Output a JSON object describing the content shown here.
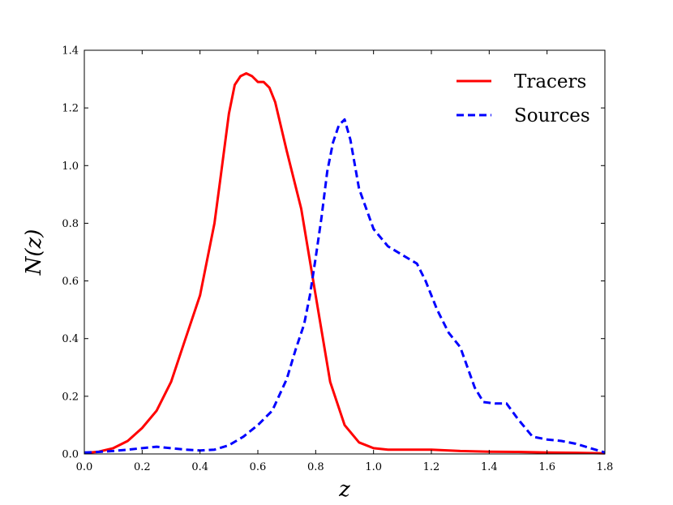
{
  "chart_data": {
    "type": "line",
    "title": "",
    "xlabel": "z",
    "ylabel": "N(z)",
    "xlim": [
      0.0,
      1.8
    ],
    "ylim": [
      0.0,
      1.4
    ],
    "xticks": [
      "0.0",
      "0.2",
      "0.4",
      "0.6",
      "0.8",
      "1.0",
      "1.2",
      "1.4",
      "1.6",
      "1.8"
    ],
    "yticks": [
      "0.0",
      "0.2",
      "0.4",
      "0.6",
      "0.8",
      "1.0",
      "1.2",
      "1.4"
    ],
    "grid": false,
    "legend_position": "top-right",
    "series": [
      {
        "name": "Tracers",
        "color": "#ff0000",
        "linestyle": "solid",
        "x": [
          0.0,
          0.05,
          0.1,
          0.15,
          0.2,
          0.25,
          0.3,
          0.35,
          0.4,
          0.45,
          0.47,
          0.5,
          0.52,
          0.54,
          0.56,
          0.58,
          0.6,
          0.62,
          0.64,
          0.66,
          0.7,
          0.75,
          0.8,
          0.85,
          0.9,
          0.95,
          1.0,
          1.05,
          1.1,
          1.15,
          1.2,
          1.3,
          1.4,
          1.5,
          1.6,
          1.7,
          1.8
        ],
        "y": [
          0.003,
          0.008,
          0.02,
          0.045,
          0.09,
          0.15,
          0.25,
          0.4,
          0.55,
          0.8,
          0.95,
          1.18,
          1.28,
          1.31,
          1.32,
          1.31,
          1.29,
          1.29,
          1.27,
          1.22,
          1.05,
          0.85,
          0.55,
          0.25,
          0.1,
          0.04,
          0.02,
          0.015,
          0.015,
          0.015,
          0.015,
          0.01,
          0.008,
          0.007,
          0.005,
          0.004,
          0.002
        ]
      },
      {
        "name": "Sources",
        "color": "#0000ff",
        "linestyle": "dashed",
        "x": [
          0.0,
          0.05,
          0.1,
          0.15,
          0.2,
          0.25,
          0.3,
          0.35,
          0.4,
          0.45,
          0.5,
          0.55,
          0.6,
          0.65,
          0.7,
          0.73,
          0.76,
          0.78,
          0.8,
          0.82,
          0.84,
          0.86,
          0.88,
          0.9,
          0.92,
          0.95,
          1.0,
          1.05,
          1.1,
          1.15,
          1.18,
          1.22,
          1.26,
          1.3,
          1.35,
          1.38,
          1.42,
          1.46,
          1.5,
          1.55,
          1.6,
          1.65,
          1.7,
          1.75,
          1.8
        ],
        "y": [
          0.005,
          0.007,
          0.01,
          0.015,
          0.02,
          0.025,
          0.02,
          0.015,
          0.012,
          0.015,
          0.03,
          0.06,
          0.1,
          0.15,
          0.26,
          0.36,
          0.45,
          0.55,
          0.68,
          0.82,
          0.98,
          1.08,
          1.14,
          1.16,
          1.09,
          0.92,
          0.78,
          0.72,
          0.69,
          0.66,
          0.6,
          0.5,
          0.42,
          0.37,
          0.23,
          0.18,
          0.175,
          0.175,
          0.12,
          0.06,
          0.05,
          0.045,
          0.035,
          0.02,
          0.005
        ]
      }
    ]
  }
}
